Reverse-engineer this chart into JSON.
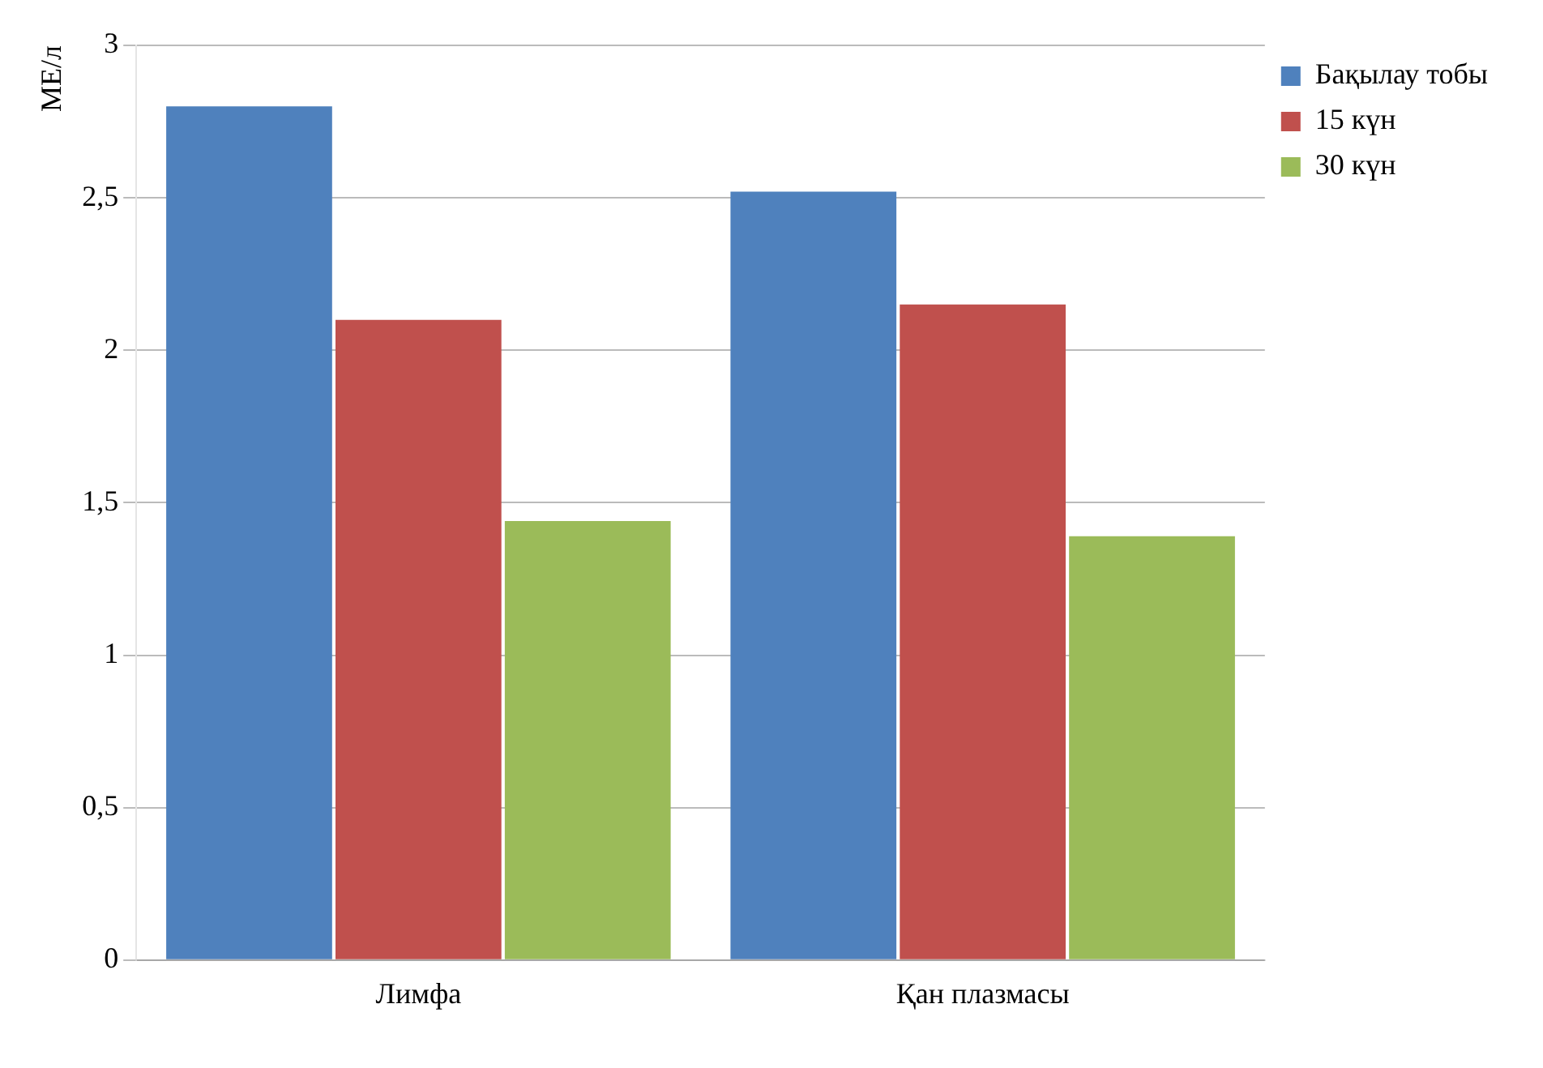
{
  "chart_data": {
    "type": "bar",
    "ylabel": "МЕ/л",
    "categories": [
      "Лимфа",
      "Қан плазмасы"
    ],
    "series": [
      {
        "name": "Бақылау тобы",
        "color": "#4f81bd",
        "values": [
          2.8,
          2.52
        ]
      },
      {
        "name": "15 күн",
        "color": "#c0504d",
        "values": [
          2.1,
          2.15
        ]
      },
      {
        "name": "30 күн",
        "color": "#9bbb59",
        "values": [
          1.44,
          1.39
        ]
      }
    ],
    "ylim": [
      0,
      3
    ],
    "yticks": [
      0,
      {
        "value": 0.5,
        "label": "0,5"
      },
      1,
      {
        "value": 1.5,
        "label": "1,5"
      },
      2,
      {
        "value": 2.5,
        "label": "2,5"
      },
      3
    ],
    "grid": "y",
    "legend": "top right"
  }
}
